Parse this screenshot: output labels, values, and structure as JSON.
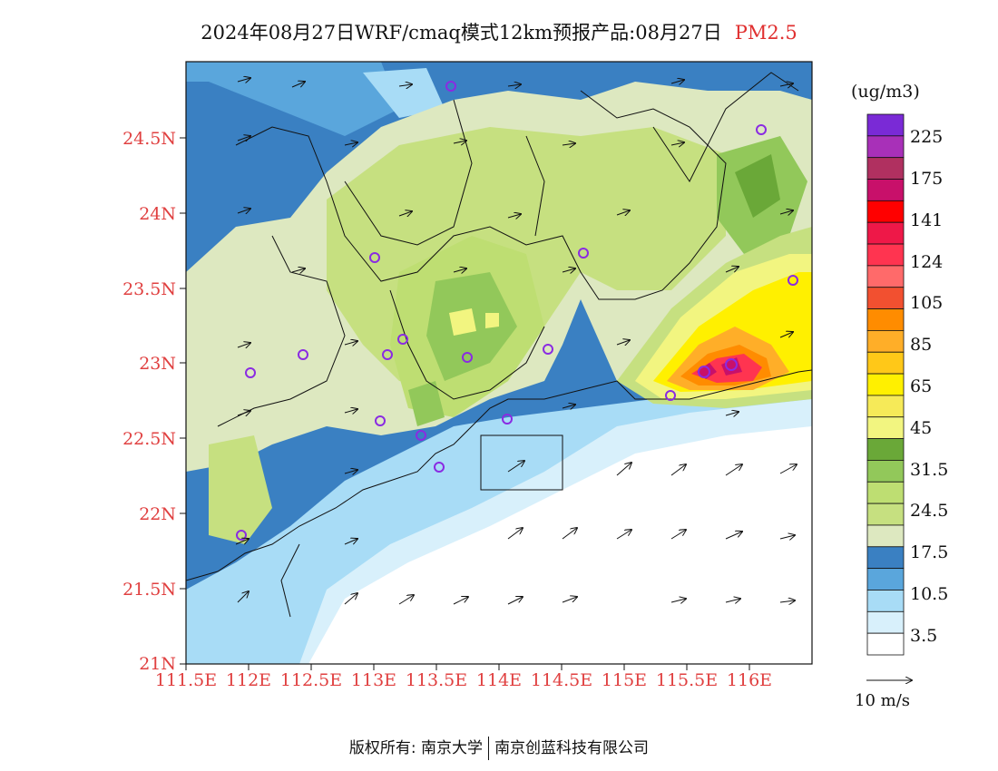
{
  "title": {
    "main": "2024年08月27日WRF/cmaq模式12km预报产品:08月27日",
    "pollutant": "PM2.5"
  },
  "axes": {
    "lat_labels": [
      "24.5N",
      "24N",
      "23.5N",
      "23N",
      "22.5N",
      "22N",
      "21.5N",
      "21N"
    ],
    "lon_labels": [
      "111.5E",
      "112E",
      "112.5E",
      "113E",
      "113.5E",
      "114E",
      "114.5E",
      "115E",
      "115.5E",
      "116E"
    ]
  },
  "colorbar": {
    "unit": "(ug/m3)",
    "labels": [
      "225",
      "175",
      "141",
      "124",
      "105",
      "85",
      "65",
      "45",
      "31.5",
      "24.5",
      "17.5",
      "10.5",
      "3.5"
    ],
    "colors": [
      "#7a2ad6",
      "#a830b8",
      "#b03060",
      "#c8106a",
      "#ff0000",
      "#ee1848",
      "#ff3450",
      "#ff6a6a",
      "#f25030",
      "#ff8c00",
      "#ffae28",
      "#ffc818",
      "#fff000",
      "#f6ea58",
      "#f2f580",
      "#6aa838",
      "#92c85a",
      "#bede72",
      "#c6e080",
      "#dde8c0",
      "#3a80c2",
      "#5aa6dc",
      "#a8dcf6",
      "#d8f0fb",
      "#ffffff"
    ]
  },
  "wind_reference": {
    "label": "10 m/s"
  },
  "footer": {
    "copyright": "版权所有: 南京大学",
    "company": "南京创蓝科技有限公司"
  }
}
